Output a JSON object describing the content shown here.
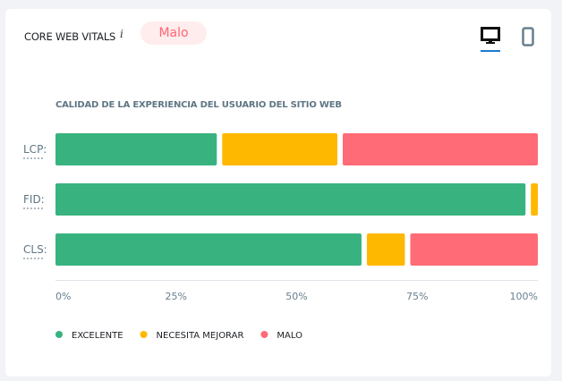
{
  "header": {
    "title": "CORE WEB VITALS",
    "info_icon": "i",
    "badge": "Malo",
    "badge_color": "#ff6673",
    "devices": [
      {
        "name": "desktop-icon",
        "active": true
      },
      {
        "name": "mobile-icon",
        "active": false
      }
    ]
  },
  "chart_data": {
    "type": "bar",
    "stacked": true,
    "orientation": "horizontal",
    "title": "CALIDAD DE LA EXPERIENCIA DEL USUARIO DEL SITIO WEB",
    "categories": [
      "LCP:",
      "FID:",
      "CLS:"
    ],
    "series": [
      {
        "name": "EXCELENTE",
        "color": "#38b380",
        "values": [
          34,
          98,
          64
        ]
      },
      {
        "name": "NECESITA MEJORAR",
        "color": "#ffb800",
        "values": [
          25,
          2,
          9
        ]
      },
      {
        "name": "MALO",
        "color": "#ff6b77",
        "values": [
          41,
          0,
          27
        ]
      }
    ],
    "xlim": [
      0,
      100
    ],
    "x_ticks": [
      "0%",
      "25%",
      "50%",
      "75%",
      "100%"
    ],
    "legend": "bottom-left"
  }
}
